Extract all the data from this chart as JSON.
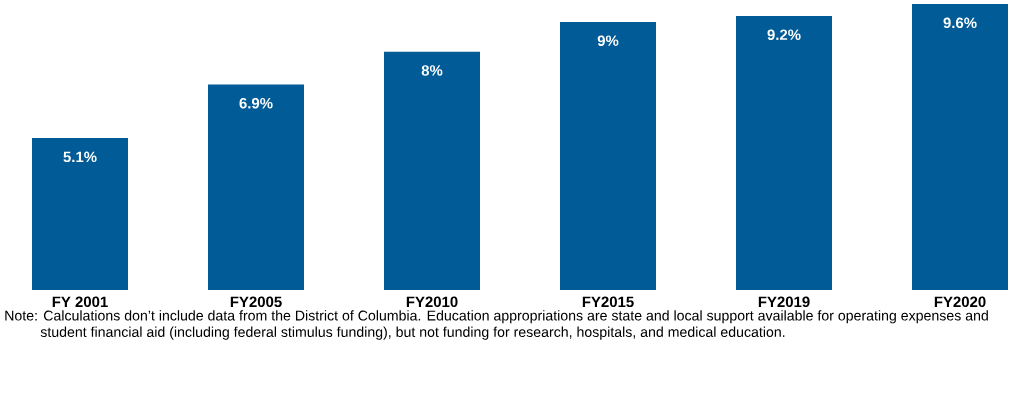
{
  "chart_data": {
    "type": "bar",
    "categories": [
      "FY 2001",
      "FY2005",
      "FY2010",
      "FY2015",
      "FY2019",
      "FY2020"
    ],
    "values": [
      5.1,
      6.9,
      8,
      9,
      9.2,
      9.6
    ],
    "value_labels": [
      "5.1%",
      "6.9%",
      "8%",
      "9%",
      "9.2%",
      "9.6%"
    ],
    "color": "#005b96",
    "tick_labels": "x",
    "annotations": [
      "Note: Calculations don’t include data from the District of Columbia. Education appropriations are state and local support available for operating expenses and student financial aid (including federal stimulus funding), but not funding for research, hospitals, and medical education."
    ]
  }
}
